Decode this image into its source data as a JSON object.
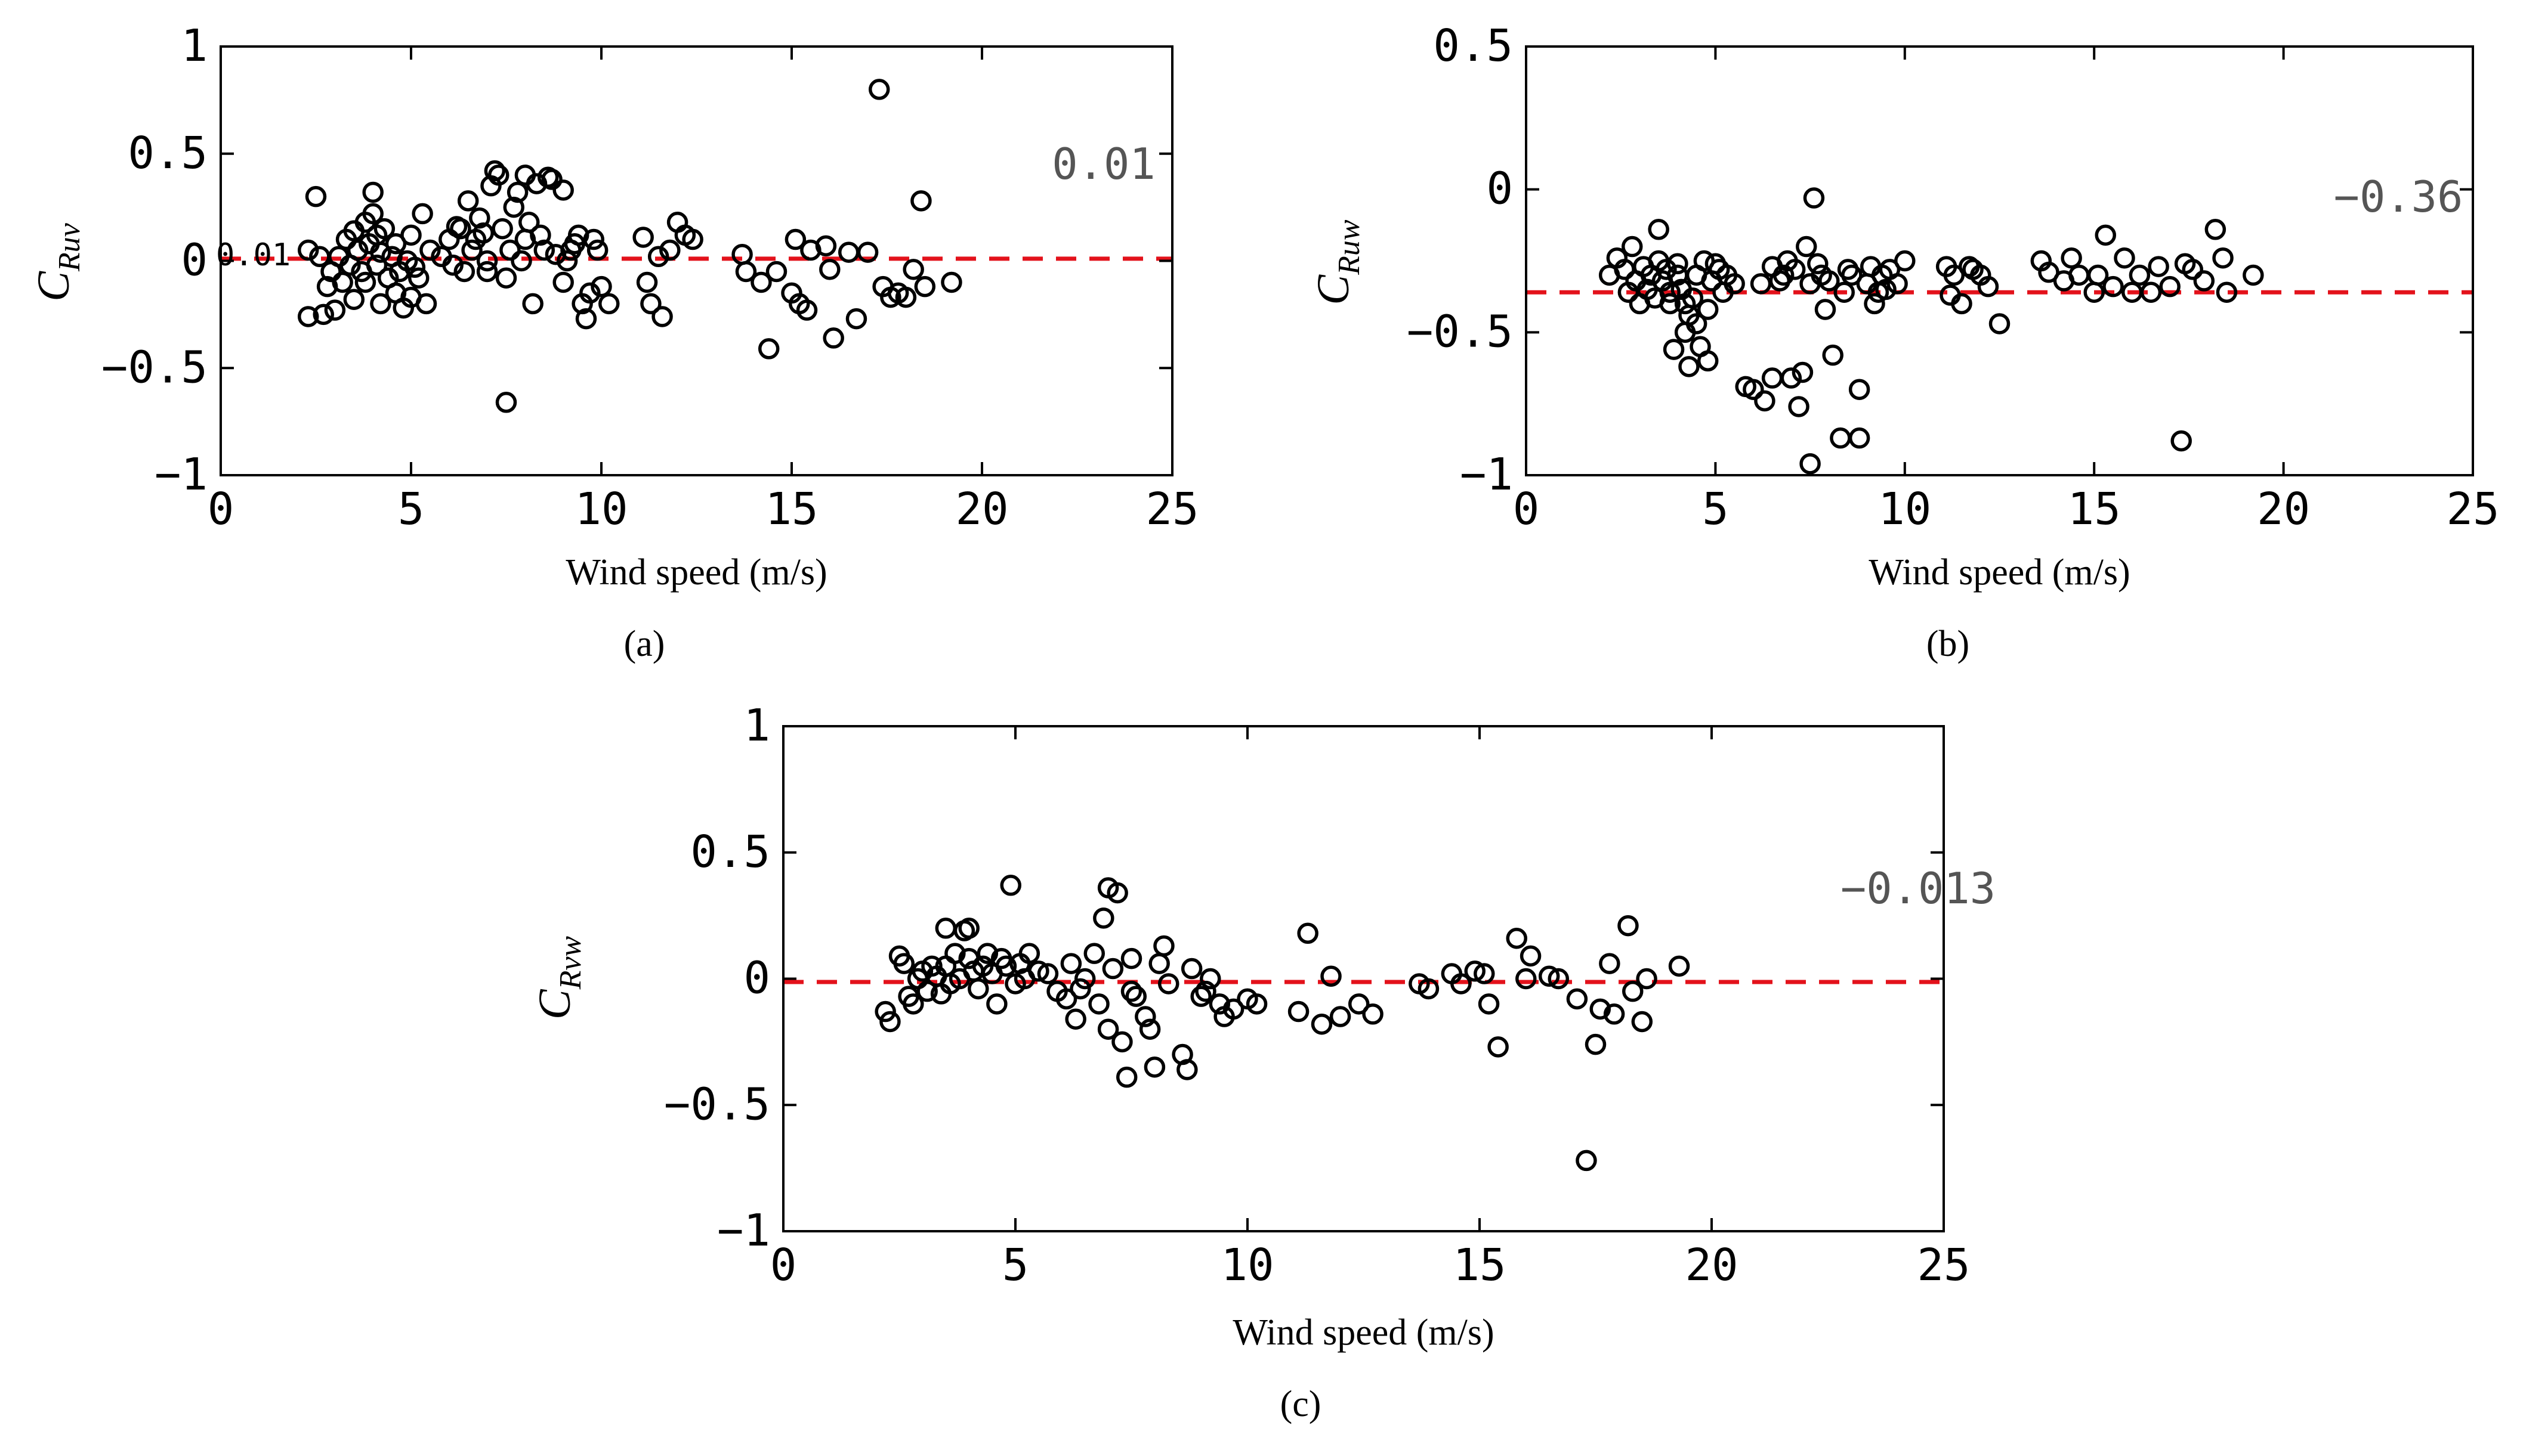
{
  "chart_data": [
    {
      "id": "a",
      "type": "scatter",
      "caption": "(a)",
      "xlabel": "Wind speed (m/s)",
      "ylabel_main": "C",
      "ylabel_sub": "Ruv",
      "xlim": [
        0,
        25
      ],
      "ylim": [
        -1,
        1
      ],
      "xticks": [
        0,
        5,
        10,
        15,
        20,
        25
      ],
      "yticks": [
        -1,
        -0.5,
        0,
        0.5,
        1
      ],
      "xtick_labels": [
        "0",
        "5",
        "10",
        "15",
        "20",
        "25"
      ],
      "ytick_labels": [
        "−1",
        "−0.5",
        "0",
        "0.5",
        "1"
      ],
      "mean": 0.01,
      "annotation": "0.01",
      "left_annotation": "0.01",
      "points": [
        [
          2.3,
          -0.26
        ],
        [
          2.3,
          0.05
        ],
        [
          2.5,
          0.3
        ],
        [
          2.6,
          0.02
        ],
        [
          2.7,
          -0.25
        ],
        [
          2.8,
          -0.12
        ],
        [
          2.9,
          -0.05
        ],
        [
          3,
          -0.23
        ],
        [
          3.1,
          0.02
        ],
        [
          3.2,
          -0.1
        ],
        [
          3.3,
          0.1
        ],
        [
          3.4,
          -0.02
        ],
        [
          3.5,
          -0.18
        ],
        [
          3.5,
          0.14
        ],
        [
          3.6,
          0.05
        ],
        [
          3.7,
          -0.05
        ],
        [
          3.8,
          0.18
        ],
        [
          3.8,
          -0.1
        ],
        [
          3.9,
          0.08
        ],
        [
          4.0,
          0.22
        ],
        [
          4.0,
          0.32
        ],
        [
          4.1,
          -0.02
        ],
        [
          4.1,
          0.12
        ],
        [
          4.2,
          -0.2
        ],
        [
          4.2,
          0.04
        ],
        [
          4.3,
          0.15
        ],
        [
          4.4,
          -0.08
        ],
        [
          4.5,
          0.02
        ],
        [
          4.6,
          -0.15
        ],
        [
          4.6,
          0.08
        ],
        [
          4.7,
          -0.05
        ],
        [
          4.8,
          -0.22
        ],
        [
          4.9,
          0.0
        ],
        [
          5.0,
          -0.17
        ],
        [
          5.0,
          0.12
        ],
        [
          5.1,
          -0.03
        ],
        [
          5.2,
          -0.08
        ],
        [
          5.3,
          0.22
        ],
        [
          5.4,
          -0.2
        ],
        [
          5.5,
          0.05
        ],
        [
          5.8,
          0.02
        ],
        [
          6.0,
          0.1
        ],
        [
          6.1,
          -0.02
        ],
        [
          6.2,
          0.16
        ],
        [
          6.3,
          0.15
        ],
        [
          6.4,
          -0.05
        ],
        [
          6.5,
          0.28
        ],
        [
          6.6,
          0.05
        ],
        [
          6.7,
          0.1
        ],
        [
          6.8,
          0.2
        ],
        [
          6.9,
          0.13
        ],
        [
          7.0,
          -0.05
        ],
        [
          7.0,
          0.0
        ],
        [
          7.1,
          0.35
        ],
        [
          7.2,
          0.42
        ],
        [
          7.3,
          0.4
        ],
        [
          7.4,
          0.15
        ],
        [
          7.5,
          -0.08
        ],
        [
          7.5,
          -0.66
        ],
        [
          7.6,
          0.05
        ],
        [
          7.7,
          0.25
        ],
        [
          7.8,
          0.32
        ],
        [
          7.9,
          0.0
        ],
        [
          8.0,
          0.4
        ],
        [
          8.0,
          0.1
        ],
        [
          8.1,
          0.18
        ],
        [
          8.2,
          -0.2
        ],
        [
          8.3,
          0.36
        ],
        [
          8.4,
          0.12
        ],
        [
          8.5,
          0.05
        ],
        [
          8.6,
          0.39
        ],
        [
          8.7,
          0.38
        ],
        [
          8.8,
          0.03
        ],
        [
          9.0,
          -0.1
        ],
        [
          9.0,
          0.33
        ],
        [
          9.1,
          0.0
        ],
        [
          9.2,
          0.05
        ],
        [
          9.3,
          0.08
        ],
        [
          9.4,
          0.12
        ],
        [
          9.5,
          -0.2
        ],
        [
          9.6,
          -0.27
        ],
        [
          9.7,
          -0.15
        ],
        [
          9.8,
          0.1
        ],
        [
          9.9,
          0.05
        ],
        [
          10.0,
          -0.12
        ],
        [
          10.2,
          -0.2
        ],
        [
          11.1,
          0.11
        ],
        [
          11.2,
          -0.1
        ],
        [
          11.3,
          -0.2
        ],
        [
          11.5,
          0.02
        ],
        [
          11.6,
          -0.26
        ],
        [
          11.8,
          0.05
        ],
        [
          12.0,
          0.18
        ],
        [
          12.2,
          0.12
        ],
        [
          12.4,
          0.1
        ],
        [
          13.7,
          0.03
        ],
        [
          13.8,
          -0.05
        ],
        [
          14.2,
          -0.1
        ],
        [
          14.4,
          -0.41
        ],
        [
          14.6,
          -0.05
        ],
        [
          15.0,
          -0.15
        ],
        [
          15.1,
          0.1
        ],
        [
          15.2,
          -0.2
        ],
        [
          15.4,
          -0.23
        ],
        [
          15.5,
          0.05
        ],
        [
          15.9,
          0.07
        ],
        [
          16.0,
          -0.04
        ],
        [
          16.1,
          -0.36
        ],
        [
          16.5,
          0.04
        ],
        [
          16.7,
          -0.27
        ],
        [
          17.0,
          0.04
        ],
        [
          17.3,
          0.8
        ],
        [
          17.4,
          -0.12
        ],
        [
          17.6,
          -0.17
        ],
        [
          17.8,
          -0.15
        ],
        [
          18.0,
          -0.17
        ],
        [
          18.2,
          -0.04
        ],
        [
          18.4,
          0.28
        ],
        [
          18.5,
          -0.12
        ],
        [
          19.2,
          -0.1
        ]
      ]
    },
    {
      "id": "b",
      "type": "scatter",
      "caption": "(b)",
      "xlabel": "Wind speed (m/s)",
      "ylabel_main": "C",
      "ylabel_sub": "Ruw",
      "xlim": [
        0,
        25
      ],
      "ylim": [
        -1,
        0.5
      ],
      "xticks": [
        0,
        5,
        10,
        15,
        20,
        25
      ],
      "yticks": [
        -1,
        -0.5,
        0,
        0.5
      ],
      "xtick_labels": [
        "0",
        "5",
        "10",
        "15",
        "20",
        "25"
      ],
      "ytick_labels": [
        "−1",
        "−0.5",
        "0",
        "0.5"
      ],
      "mean": -0.36,
      "annotation": "−0.36",
      "points": [
        [
          2.2,
          -0.3
        ],
        [
          2.4,
          -0.24
        ],
        [
          2.6,
          -0.28
        ],
        [
          2.7,
          -0.36
        ],
        [
          2.8,
          -0.2
        ],
        [
          2.9,
          -0.32
        ],
        [
          3.0,
          -0.4
        ],
        [
          3.1,
          -0.27
        ],
        [
          3.2,
          -0.35
        ],
        [
          3.3,
          -0.3
        ],
        [
          3.4,
          -0.38
        ],
        [
          3.5,
          -0.14
        ],
        [
          3.5,
          -0.25
        ],
        [
          3.6,
          -0.32
        ],
        [
          3.7,
          -0.28
        ],
        [
          3.8,
          -0.36
        ],
        [
          3.8,
          -0.4
        ],
        [
          3.9,
          -0.56
        ],
        [
          4.0,
          -0.3
        ],
        [
          4.0,
          -0.26
        ],
        [
          4.1,
          -0.35
        ],
        [
          4.2,
          -0.4
        ],
        [
          4.2,
          -0.5
        ],
        [
          4.3,
          -0.44
        ],
        [
          4.3,
          -0.62
        ],
        [
          4.4,
          -0.38
        ],
        [
          4.5,
          -0.3
        ],
        [
          4.5,
          -0.47
        ],
        [
          4.6,
          -0.55
        ],
        [
          4.7,
          -0.25
        ],
        [
          4.8,
          -0.42
        ],
        [
          4.8,
          -0.6
        ],
        [
          4.9,
          -0.32
        ],
        [
          5.0,
          -0.26
        ],
        [
          5.1,
          -0.28
        ],
        [
          5.2,
          -0.36
        ],
        [
          5.3,
          -0.3
        ],
        [
          5.5,
          -0.33
        ],
        [
          5.8,
          -0.69
        ],
        [
          6.0,
          -0.7
        ],
        [
          6.2,
          -0.33
        ],
        [
          6.3,
          -0.74
        ],
        [
          6.5,
          -0.66
        ],
        [
          6.5,
          -0.27
        ],
        [
          6.7,
          -0.32
        ],
        [
          6.8,
          -0.3
        ],
        [
          6.9,
          -0.25
        ],
        [
          7.0,
          -0.66
        ],
        [
          7.1,
          -0.28
        ],
        [
          7.2,
          -0.76
        ],
        [
          7.3,
          -0.64
        ],
        [
          7.4,
          -0.2
        ],
        [
          7.5,
          -0.33
        ],
        [
          7.5,
          -0.96
        ],
        [
          7.6,
          -0.03
        ],
        [
          7.7,
          -0.26
        ],
        [
          7.8,
          -0.3
        ],
        [
          7.9,
          -0.42
        ],
        [
          8.0,
          -0.32
        ],
        [
          8.1,
          -0.58
        ],
        [
          8.3,
          -0.87
        ],
        [
          8.4,
          -0.36
        ],
        [
          8.5,
          -0.28
        ],
        [
          8.6,
          -0.3
        ],
        [
          8.8,
          -0.87
        ],
        [
          8.8,
          -0.7
        ],
        [
          9.0,
          -0.33
        ],
        [
          9.1,
          -0.27
        ],
        [
          9.2,
          -0.4
        ],
        [
          9.3,
          -0.36
        ],
        [
          9.4,
          -0.3
        ],
        [
          9.5,
          -0.35
        ],
        [
          9.6,
          -0.28
        ],
        [
          9.8,
          -0.33
        ],
        [
          10.0,
          -0.25
        ],
        [
          11.1,
          -0.27
        ],
        [
          11.2,
          -0.37
        ],
        [
          11.3,
          -0.3
        ],
        [
          11.5,
          -0.4
        ],
        [
          11.7,
          -0.27
        ],
        [
          11.8,
          -0.28
        ],
        [
          12.0,
          -0.3
        ],
        [
          12.2,
          -0.34
        ],
        [
          12.5,
          -0.47
        ],
        [
          13.6,
          -0.25
        ],
        [
          13.8,
          -0.29
        ],
        [
          14.2,
          -0.32
        ],
        [
          14.4,
          -0.24
        ],
        [
          14.6,
          -0.3
        ],
        [
          15.0,
          -0.36
        ],
        [
          15.1,
          -0.3
        ],
        [
          15.3,
          -0.16
        ],
        [
          15.5,
          -0.34
        ],
        [
          15.8,
          -0.24
        ],
        [
          16.0,
          -0.36
        ],
        [
          16.2,
          -0.3
        ],
        [
          16.5,
          -0.36
        ],
        [
          16.7,
          -0.27
        ],
        [
          17.0,
          -0.34
        ],
        [
          17.3,
          -0.88
        ],
        [
          17.4,
          -0.26
        ],
        [
          17.6,
          -0.28
        ],
        [
          17.9,
          -0.32
        ],
        [
          18.2,
          -0.14
        ],
        [
          18.4,
          -0.24
        ],
        [
          18.5,
          -0.36
        ],
        [
          19.2,
          -0.3
        ]
      ]
    },
    {
      "id": "c",
      "type": "scatter",
      "caption": "(c)",
      "xlabel": "Wind speed (m/s)",
      "ylabel_main": "C",
      "ylabel_sub": "Rvw",
      "xlim": [
        0,
        25
      ],
      "ylim": [
        -1,
        1
      ],
      "xticks": [
        0,
        5,
        10,
        15,
        20,
        25
      ],
      "yticks": [
        -1,
        -0.5,
        0,
        0.5,
        1
      ],
      "xtick_labels": [
        "0",
        "5",
        "10",
        "15",
        "20",
        "25"
      ],
      "ytick_labels": [
        "−1",
        "−0.5",
        "0",
        "0.5",
        "1"
      ],
      "mean": -0.013,
      "annotation": "−0.013",
      "points": [
        [
          2.2,
          -0.13
        ],
        [
          2.3,
          -0.17
        ],
        [
          2.5,
          0.09
        ],
        [
          2.6,
          0.06
        ],
        [
          2.7,
          -0.07
        ],
        [
          2.8,
          -0.1
        ],
        [
          2.9,
          0.0
        ],
        [
          3.0,
          0.03
        ],
        [
          3.1,
          -0.05
        ],
        [
          3.2,
          0.05
        ],
        [
          3.3,
          0.01
        ],
        [
          3.4,
          -0.06
        ],
        [
          3.5,
          0.2
        ],
        [
          3.5,
          0.05
        ],
        [
          3.6,
          -0.02
        ],
        [
          3.7,
          0.1
        ],
        [
          3.8,
          0.0
        ],
        [
          3.9,
          0.19
        ],
        [
          4.0,
          0.08
        ],
        [
          4.0,
          0.2
        ],
        [
          4.1,
          0.03
        ],
        [
          4.2,
          -0.04
        ],
        [
          4.3,
          0.05
        ],
        [
          4.4,
          0.1
        ],
        [
          4.5,
          0.02
        ],
        [
          4.6,
          -0.1
        ],
        [
          4.7,
          0.08
        ],
        [
          4.8,
          0.05
        ],
        [
          4.9,
          0.37
        ],
        [
          5.0,
          -0.02
        ],
        [
          5.1,
          0.06
        ],
        [
          5.2,
          0.0
        ],
        [
          5.3,
          0.1
        ],
        [
          5.5,
          0.03
        ],
        [
          5.7,
          0.02
        ],
        [
          5.9,
          -0.05
        ],
        [
          6.1,
          -0.08
        ],
        [
          6.2,
          0.06
        ],
        [
          6.3,
          -0.16
        ],
        [
          6.4,
          -0.04
        ],
        [
          6.5,
          0.0
        ],
        [
          6.7,
          0.1
        ],
        [
          6.8,
          -0.1
        ],
        [
          6.9,
          0.24
        ],
        [
          7.0,
          0.36
        ],
        [
          7.0,
          -0.2
        ],
        [
          7.1,
          0.04
        ],
        [
          7.2,
          0.34
        ],
        [
          7.3,
          -0.25
        ],
        [
          7.4,
          -0.39
        ],
        [
          7.5,
          -0.05
        ],
        [
          7.5,
          0.08
        ],
        [
          7.6,
          -0.07
        ],
        [
          7.8,
          -0.15
        ],
        [
          7.9,
          -0.2
        ],
        [
          8.0,
          -0.35
        ],
        [
          8.1,
          0.06
        ],
        [
          8.2,
          0.13
        ],
        [
          8.3,
          -0.02
        ],
        [
          8.6,
          -0.3
        ],
        [
          8.7,
          -0.36
        ],
        [
          8.8,
          0.04
        ],
        [
          9.0,
          -0.07
        ],
        [
          9.1,
          -0.05
        ],
        [
          9.2,
          0.0
        ],
        [
          9.4,
          -0.1
        ],
        [
          9.5,
          -0.15
        ],
        [
          9.7,
          -0.12
        ],
        [
          10.0,
          -0.08
        ],
        [
          10.2,
          -0.1
        ],
        [
          11.1,
          -0.13
        ],
        [
          11.3,
          0.18
        ],
        [
          11.6,
          -0.18
        ],
        [
          11.8,
          0.01
        ],
        [
          12.0,
          -0.15
        ],
        [
          12.4,
          -0.1
        ],
        [
          12.7,
          -0.14
        ],
        [
          13.7,
          -0.02
        ],
        [
          13.9,
          -0.04
        ],
        [
          14.4,
          0.02
        ],
        [
          14.6,
          -0.02
        ],
        [
          14.9,
          0.03
        ],
        [
          15.1,
          0.02
        ],
        [
          15.2,
          -0.1
        ],
        [
          15.4,
          -0.27
        ],
        [
          15.8,
          0.16
        ],
        [
          16.0,
          0.0
        ],
        [
          16.1,
          0.09
        ],
        [
          16.5,
          0.01
        ],
        [
          16.7,
          0.0
        ],
        [
          17.1,
          -0.08
        ],
        [
          17.3,
          -0.72
        ],
        [
          17.5,
          -0.26
        ],
        [
          17.6,
          -0.12
        ],
        [
          17.8,
          0.06
        ],
        [
          17.9,
          -0.14
        ],
        [
          18.2,
          0.21
        ],
        [
          18.3,
          -0.05
        ],
        [
          18.5,
          -0.17
        ],
        [
          18.6,
          0.0
        ],
        [
          19.3,
          0.05
        ]
      ]
    }
  ]
}
